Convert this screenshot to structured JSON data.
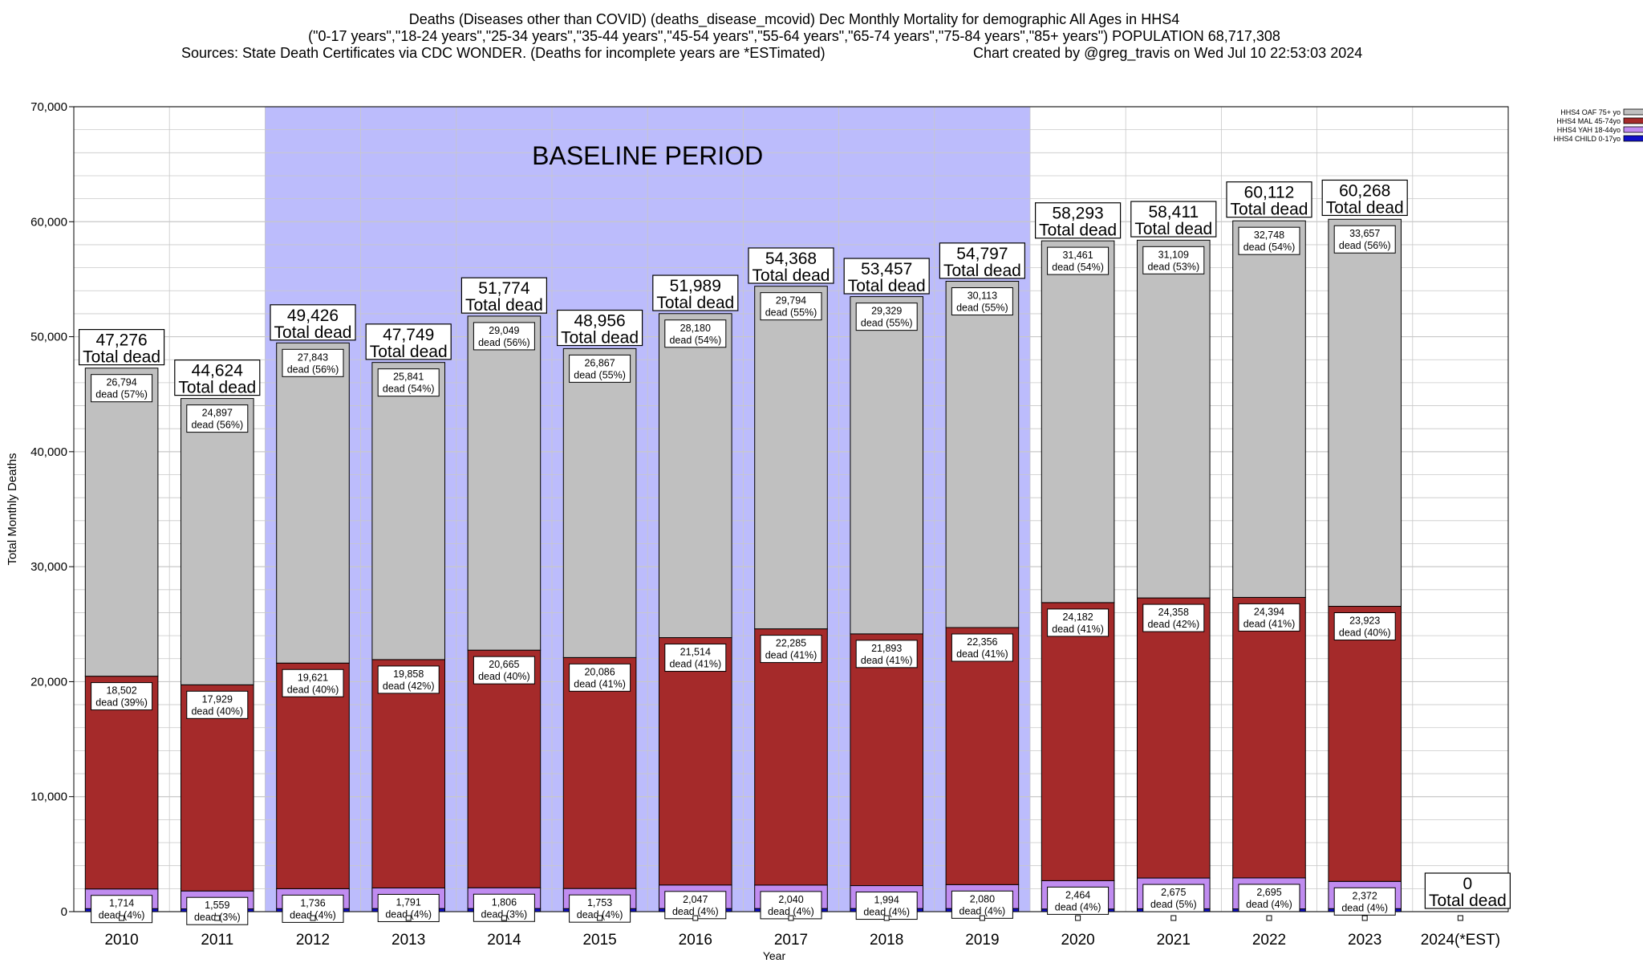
{
  "chart_data": {
    "type": "bar",
    "stacked": true,
    "title_lines": [
      "Deaths (Diseases other than COVID) (deaths_disease_mcovid) Dec Monthly Mortality for demographic All Ages in HHS4",
      "(\"0-17 years\",\"18-24 years\",\"25-34 years\",\"35-44 years\",\"45-54 years\",\"55-64 years\",\"65-74 years\",\"75-84 years\",\"85+ years\") POPULATION 68,717,308",
      "Sources: State Death Certificates via CDC WONDER. (Deaths for incomplete years are *ESTimated)"
    ],
    "credit": "Chart created by @greg_travis on Wed Jul 10 22:53:03 2024",
    "xlabel": "Year",
    "ylabel": "Total Monthly Deaths",
    "ylim": [
      0,
      70000
    ],
    "yticks": [
      "0",
      "10,000",
      "20,000",
      "30,000",
      "40,000",
      "50,000",
      "60,000",
      "70,000"
    ],
    "categories": [
      "2010",
      "2011",
      "2012",
      "2013",
      "2014",
      "2015",
      "2016",
      "2017",
      "2018",
      "2019",
      "2020",
      "2021",
      "2022",
      "2023",
      "2024(*EST)"
    ],
    "baseline": {
      "label": "BASELINE PERIOD",
      "from": "2012",
      "to": "2019"
    },
    "grid": true,
    "legend_position": "top-right",
    "series": [
      {
        "name": "HHS4 CHILD 0-17yo",
        "color": "#1010c8",
        "values": [
          260,
          240,
          260,
          270,
          270,
          260,
          270,
          270,
          270,
          270,
          230,
          250,
          240,
          260,
          0
        ],
        "labels": [
          "",
          "",
          "",
          "",
          "",
          "",
          "",
          "",
          "",
          "",
          "",
          "",
          "",
          "",
          ""
        ]
      },
      {
        "name": "HHS4 YAH 18-44yo",
        "color": "#c08cf0",
        "values": [
          1714,
          1559,
          1736,
          1791,
          1806,
          1753,
          2047,
          2040,
          1994,
          2080,
          2464,
          2675,
          2695,
          2372,
          0
        ],
        "labels": [
          "1,714\ndead (4%)",
          "1,559\ndead (3%)",
          "1,736\ndead (4%)",
          "1,791\ndead (4%)",
          "1,806\ndead (3%)",
          "1,753\ndead (4%)",
          "2,047\ndead (4%)",
          "2,040\ndead (4%)",
          "1,994\ndead (4%)",
          "2,080\ndead (4%)",
          "2,464\ndead (4%)",
          "2,675\ndead (5%)",
          "2,695\ndead (4%)",
          "2,372\ndead (4%)",
          ""
        ]
      },
      {
        "name": "HHS4 MAL 45-74yo",
        "color": "#a52a2a",
        "values": [
          18502,
          17929,
          19621,
          19858,
          20665,
          20086,
          21514,
          22285,
          21893,
          22356,
          24182,
          24358,
          24394,
          23923,
          0
        ],
        "labels": [
          "18,502\ndead (39%)",
          "17,929\ndead (40%)",
          "19,621\ndead (40%)",
          "19,858\ndead (42%)",
          "20,665\ndead (40%)",
          "20,086\ndead (41%)",
          "21,514\ndead (41%)",
          "22,285\ndead (41%)",
          "21,893\ndead (41%)",
          "22,356\ndead (41%)",
          "24,182\ndead (41%)",
          "24,358\ndead (42%)",
          "24,394\ndead (41%)",
          "23,923\ndead (40%)",
          ""
        ]
      },
      {
        "name": "HHS4 OAF 75+ yo",
        "color": "#c0c0c0",
        "values": [
          26794,
          24897,
          27843,
          25841,
          29049,
          26867,
          28180,
          29794,
          29329,
          30113,
          31461,
          31109,
          32748,
          33657,
          0
        ],
        "labels": [
          "26,794\ndead (57%)",
          "24,897\ndead (56%)",
          "27,843\ndead (56%)",
          "25,841\ndead (54%)",
          "29,049\ndead (56%)",
          "26,867\ndead (55%)",
          "28,180\ndead (54%)",
          "29,794\ndead (55%)",
          "29,329\ndead (55%)",
          "30,113\ndead (55%)",
          "31,461\ndead (54%)",
          "31,109\ndead (53%)",
          "32,748\ndead (54%)",
          "33,657\ndead (56%)",
          ""
        ]
      }
    ],
    "totals": [
      47276,
      44624,
      49426,
      47749,
      51774,
      48956,
      51989,
      54368,
      53457,
      54797,
      58293,
      58411,
      60112,
      60268,
      0
    ],
    "total_labels": [
      "47,276",
      "44,624",
      "49,426",
      "47,749",
      "51,774",
      "48,956",
      "51,989",
      "54,368",
      "53,457",
      "54,797",
      "58,293",
      "58,411",
      "60,112",
      "60,268",
      "0"
    ],
    "total_suffix": "Total dead",
    "colors": {
      "baseline_fill": "#bcbcfc",
      "grid": "#c8c8c8",
      "background": "#ffffff"
    }
  }
}
